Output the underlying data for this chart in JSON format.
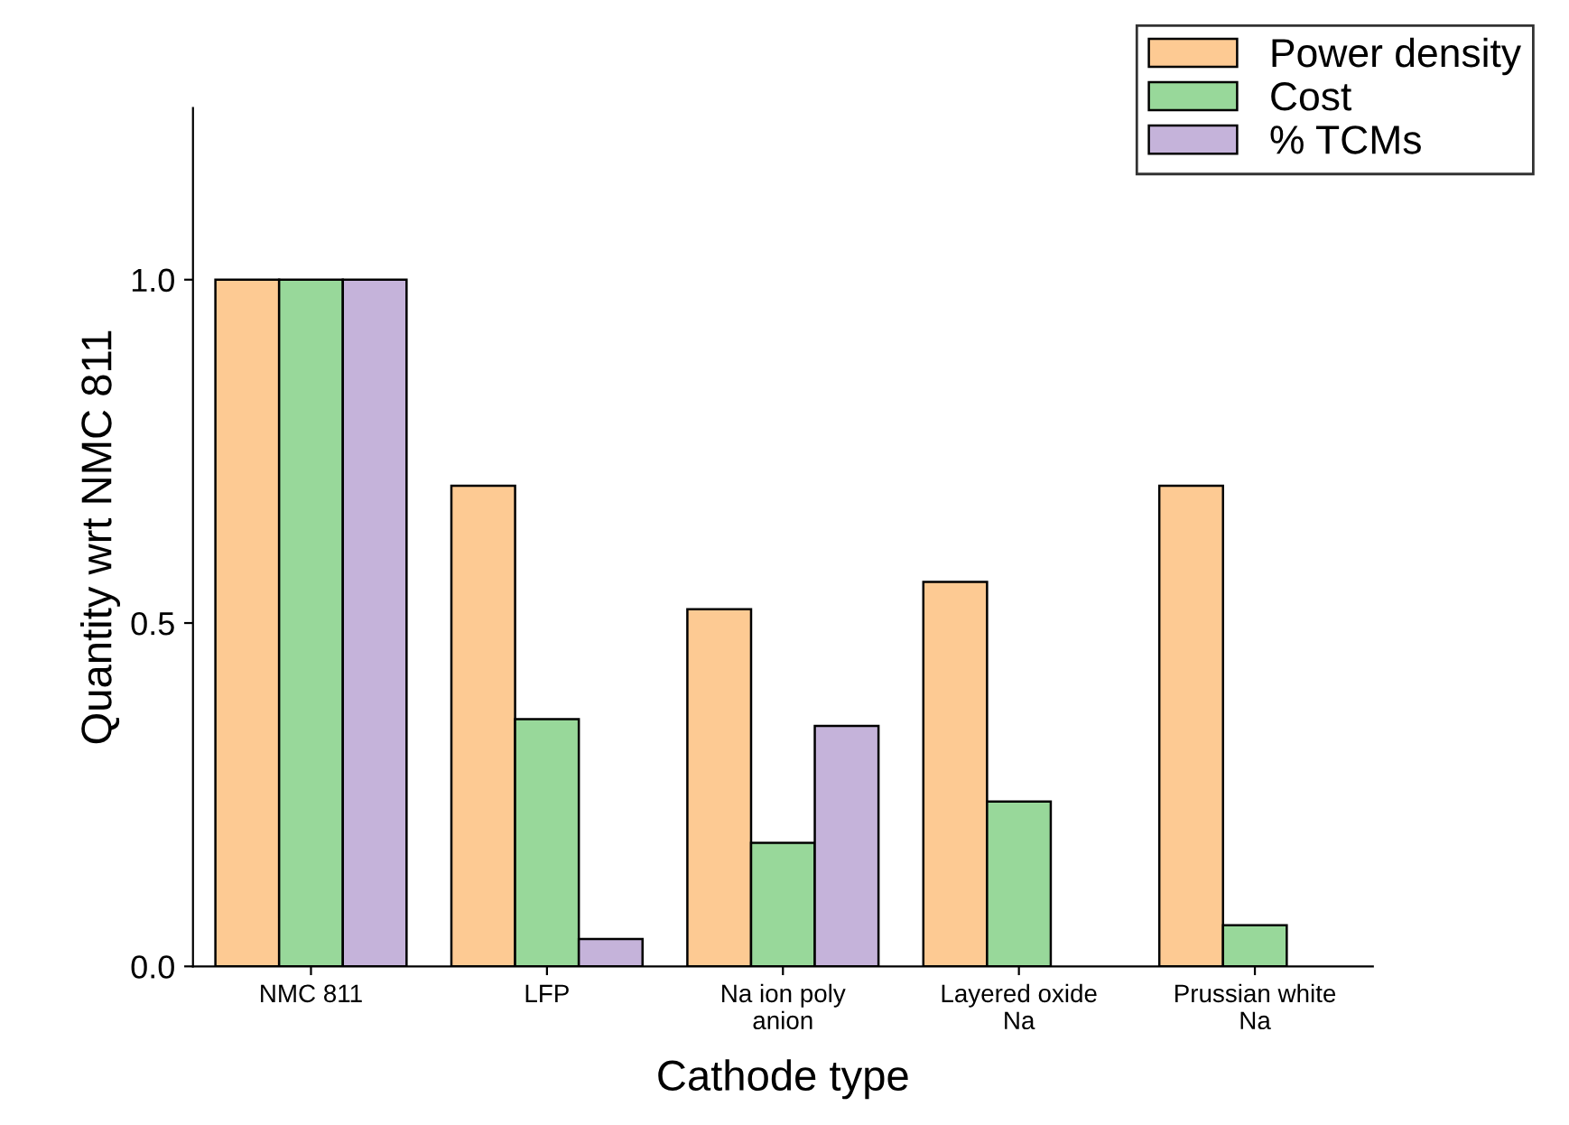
{
  "chart_data": {
    "type": "bar",
    "xlabel": "Cathode type",
    "ylabel": "Quantity wrt NMC 811",
    "categories": [
      "NMC 811",
      "LFP",
      "Na ion poly\nanion",
      "Layered oxide\nNa",
      "Prussian white\nNa"
    ],
    "series": [
      {
        "name": "Power density",
        "color": "#fdca93",
        "values": [
          1.0,
          0.7,
          0.52,
          0.56,
          0.7
        ]
      },
      {
        "name": "Cost",
        "color": "#98d89a",
        "values": [
          1.0,
          0.36,
          0.18,
          0.24,
          0.06
        ]
      },
      {
        "name": "% TCMs",
        "color": "#c5b3da",
        "values": [
          1.0,
          0.04,
          0.35,
          null,
          null
        ]
      }
    ],
    "ylim": [
      0,
      1.25
    ],
    "yticks": [
      {
        "value": 0,
        "label": "0.0"
      },
      {
        "value": 0.5,
        "label": "0.5"
      },
      {
        "value": 1.0,
        "label": "1.0"
      }
    ],
    "grid": false,
    "legend": "top right"
  }
}
